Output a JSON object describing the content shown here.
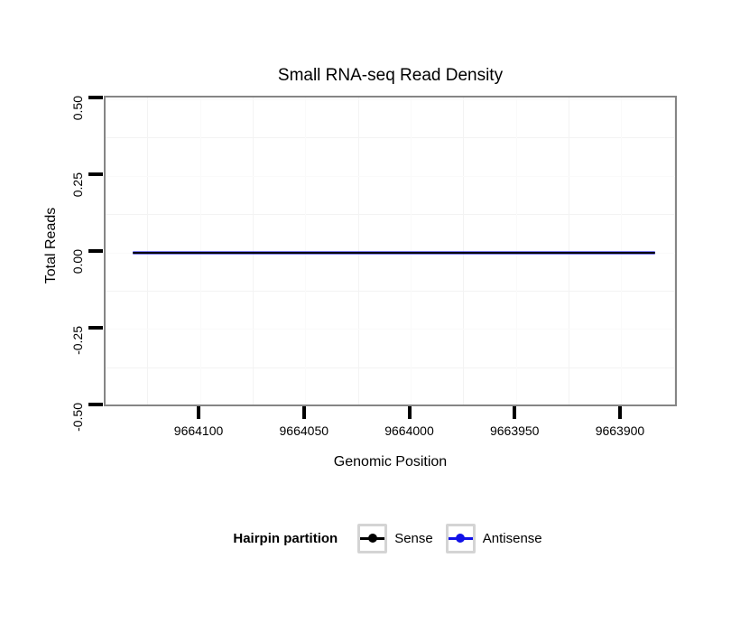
{
  "title": "Small RNA-seq Read Density",
  "legend": {
    "title": "Hairpin partition",
    "items": [
      {
        "label": "Sense",
        "color": "#000000"
      },
      {
        "label": "Antisense",
        "color": "#1111e8"
      }
    ]
  },
  "chart_data": {
    "type": "line",
    "title": "Small RNA-seq Read Density",
    "xlabel": "Genomic Position",
    "ylabel": "Total Reads",
    "x_reversed": true,
    "xlim": [
      9664145,
      9663873
    ],
    "ylim": [
      -0.506,
      0.506
    ],
    "x_ticks": [
      {
        "value": 9664100,
        "label": "9664100"
      },
      {
        "value": 9664050,
        "label": "9664050"
      },
      {
        "value": 9664000,
        "label": "9664000"
      },
      {
        "value": 9663950,
        "label": "9663950"
      },
      {
        "value": 9663900,
        "label": "9663900"
      }
    ],
    "x_minor": [
      9664125,
      9664075,
      9664025,
      9663975,
      9663925,
      9663875
    ],
    "y_ticks": [
      {
        "value": 0.5,
        "label": "0.50"
      },
      {
        "value": 0.25,
        "label": "0.25"
      },
      {
        "value": 0.0,
        "label": "0.00"
      },
      {
        "value": -0.25,
        "label": "-0.25"
      },
      {
        "value": -0.5,
        "label": "-0.50"
      }
    ],
    "y_minor": [
      0.375,
      0.125,
      -0.125,
      -0.375
    ],
    "grid": "light-minor-on-white",
    "legend_position": "bottom",
    "series": [
      {
        "name": "Sense",
        "color": "#000000",
        "points": [
          [
            9664132,
            0
          ],
          [
            9663884,
            0
          ]
        ]
      },
      {
        "name": "Antisense",
        "color": "#1111e8",
        "points": [
          [
            9664132,
            0
          ],
          [
            9663884,
            0
          ]
        ]
      }
    ]
  }
}
